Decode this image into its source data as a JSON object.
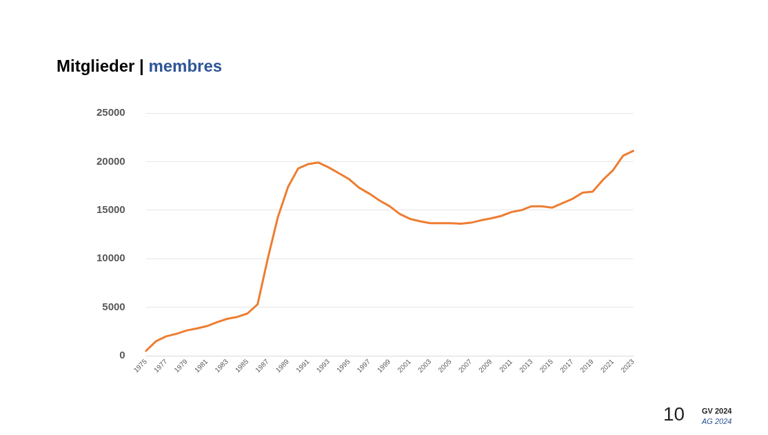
{
  "chart_data": {
    "type": "line",
    "title": "Mitglieder |",
    "subtitle": "membres",
    "categories": [
      "1975",
      null,
      "1977",
      null,
      "1979",
      null,
      "1981",
      null,
      "1983",
      null,
      "1985",
      null,
      "1987",
      null,
      "1989",
      null,
      "1991",
      null,
      "1993",
      null,
      "1995",
      null,
      "1997",
      null,
      "1999",
      null,
      "2001",
      null,
      "2003",
      null,
      "2005",
      null,
      "2007",
      null,
      "2009",
      null,
      "2011",
      null,
      "2013",
      null,
      "2015",
      null,
      "2017",
      null,
      "2019",
      null,
      "2021",
      null,
      "2023"
    ],
    "series": [
      {
        "color": "#ed7d31",
        "values": [
          500,
          1500,
          2000,
          2250,
          2600,
          2800,
          3050,
          3450,
          3800,
          4000,
          4350,
          5300,
          10000,
          14300,
          17400,
          19300,
          19750,
          19900,
          19400,
          18800,
          18200,
          17300,
          16700,
          16000,
          15400,
          14600,
          14100,
          13850,
          13650,
          13650,
          13650,
          13600,
          13700,
          13950,
          14150,
          14400,
          14800,
          15000,
          15400,
          15400,
          15250,
          15700,
          16150,
          16800,
          16900,
          18100,
          19100,
          20600,
          21100
        ]
      }
    ],
    "ylim": [
      0,
      25000
    ],
    "yticks": [
      0,
      5000,
      10000,
      15000,
      20000,
      25000
    ],
    "grid": "y",
    "legend": false,
    "marker": "none",
    "line_style": "solid",
    "annotations": [
      "10",
      "GV 2024",
      "AG 2024"
    ]
  }
}
